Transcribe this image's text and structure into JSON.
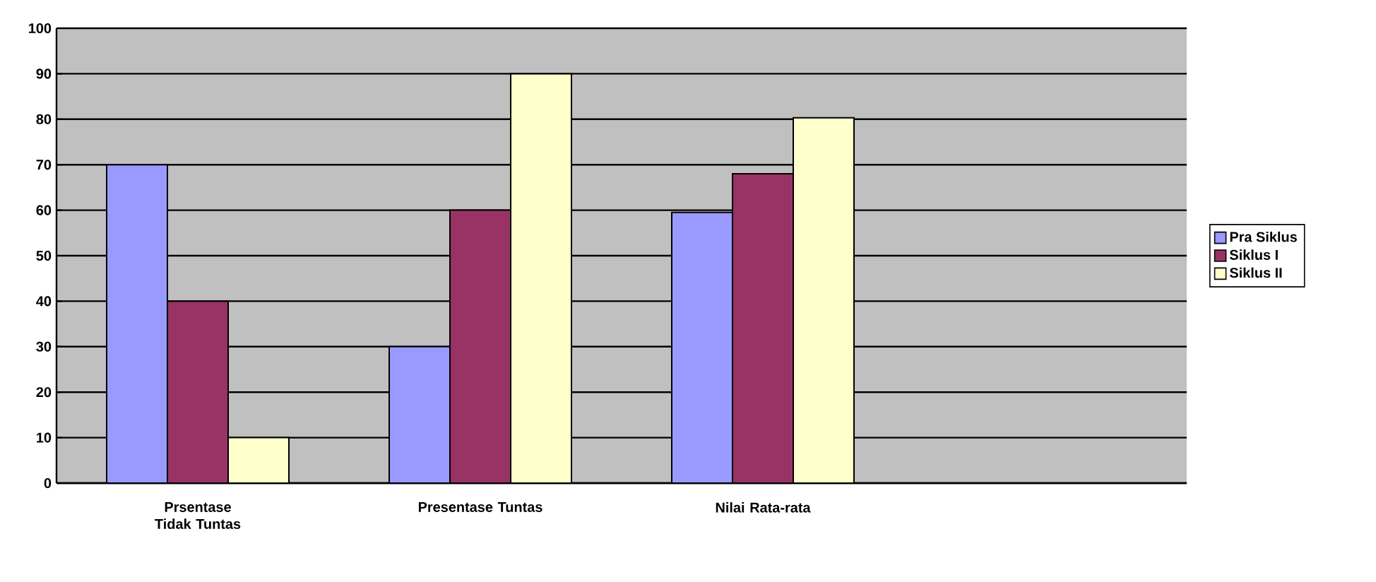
{
  "chart_data": {
    "type": "bar",
    "categories": [
      "Prsentase Tidak Tuntas",
      "Presentase Tuntas",
      "Nilai Rata-rata",
      null
    ],
    "series": [
      {
        "name": "Pra Siklus",
        "color": "#9999ff",
        "values": [
          70,
          30,
          59.5,
          null
        ]
      },
      {
        "name": "Siklus I",
        "color": "#993366",
        "values": [
          40,
          60,
          68,
          null
        ]
      },
      {
        "name": "Siklus II",
        "color": "#ffffcc",
        "values": [
          10,
          90,
          80.3,
          null
        ]
      }
    ],
    "ylim": [
      0,
      100
    ],
    "yticks": [
      0,
      10,
      20,
      30,
      40,
      50,
      60,
      70,
      80,
      90,
      100
    ],
    "grid": "y",
    "legend": "right"
  }
}
